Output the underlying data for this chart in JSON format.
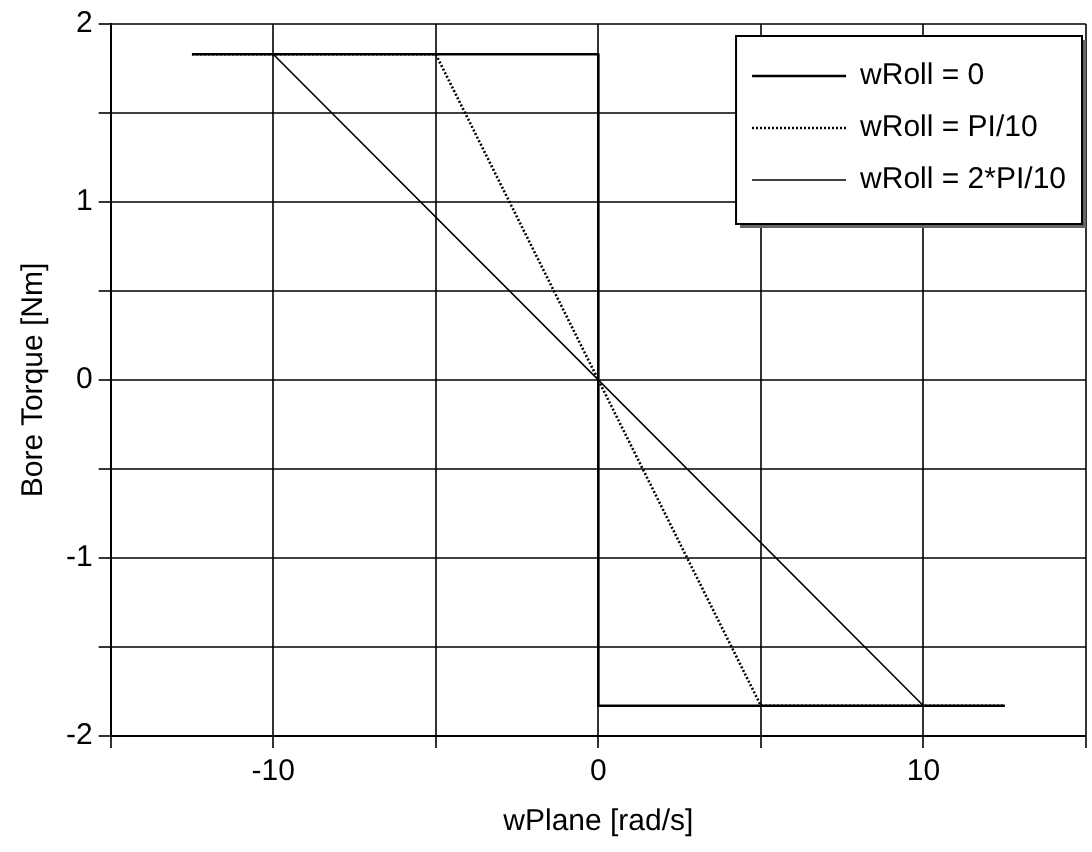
{
  "chart_data": {
    "type": "line",
    "xlabel": "wPlane [rad/s]",
    "ylabel": "Bore Torque [Nm]",
    "xlim": [
      -15,
      15
    ],
    "xticks": [
      {
        "value": -15,
        "label": null
      },
      -10,
      {
        "value": -5,
        "label": null
      },
      0,
      {
        "value": 5,
        "label": null
      },
      10,
      {
        "value": 15,
        "label": null
      }
    ],
    "ylim": [
      -2,
      2
    ],
    "yticks": [
      -2,
      {
        "value": -1.5,
        "label": null
      },
      -1,
      {
        "value": -0.5,
        "label": null
      },
      0,
      {
        "value": 0.5,
        "label": null
      },
      1,
      {
        "value": 1.5,
        "label": null
      },
      2
    ],
    "grid": true,
    "legend": "top right",
    "marker": "none",
    "series": [
      {
        "name": "wRoll = 0",
        "color": "#000000",
        "line_style": "solid",
        "x": [
          -12.5,
          0,
          0,
          12.5
        ],
        "values": [
          1.83,
          1.83,
          -1.83,
          -1.83
        ]
      },
      {
        "name": "wRoll = PI/10",
        "color": "#000000",
        "line_style": "dotted",
        "x": [
          -12.5,
          -5,
          5,
          12.5
        ],
        "values": [
          1.83,
          1.83,
          -1.83,
          -1.83
        ]
      },
      {
        "name": "wRoll = 2*PI/10",
        "color": "#000000",
        "line_style": "solid",
        "x": [
          -12.5,
          -10,
          10,
          12.5
        ],
        "values": [
          1.83,
          1.83,
          -1.83,
          -1.83
        ]
      }
    ]
  }
}
